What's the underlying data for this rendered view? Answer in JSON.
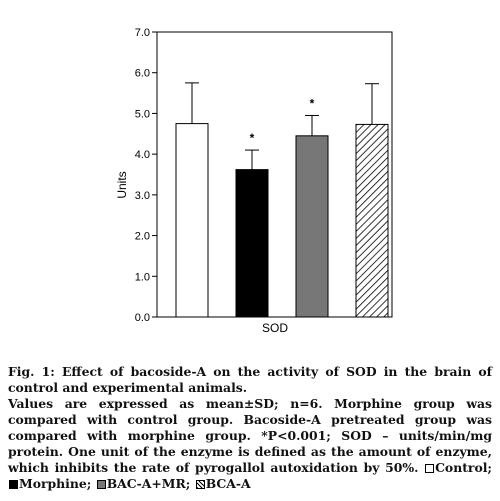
{
  "chart_data": {
    "type": "bar",
    "categories": [
      "Control",
      "Morphine",
      "BAC-A+MR",
      "BCA-A"
    ],
    "values": [
      4.75,
      3.62,
      4.45,
      4.73
    ],
    "errors": [
      1.0,
      0.48,
      0.5,
      1.0
    ],
    "significance": [
      "",
      "*",
      "*",
      ""
    ],
    "fills": [
      "#ffffff",
      "#000000",
      "#777777",
      "hatch"
    ],
    "xlabel": "SOD",
    "ylabel": "Units",
    "ylim": [
      0,
      7
    ],
    "yticks": [
      "0.0",
      "1.0",
      "2.0",
      "3.0",
      "4.0",
      "5.0",
      "6.0",
      "7.0"
    ],
    "grid": false
  },
  "caption": {
    "title": "Fig. 1: Effect of bacoside-A on the activity of SOD in the brain of control and experimental animals.",
    "note": "Values are expressed as mean±SD; n=6. Morphine group was compared with control group. Bacoside-A pretreated group was compared with morphine group. *P<0.001; SOD – units/min/mg protein. One unit of the enzyme is defined as the amount of enzyme, which inhibits the rate of pyrogallol autoxidation by 50%.",
    "legend": [
      "Control;",
      "Morphine;",
      "BAC-A+MR;",
      "BCA-A"
    ]
  }
}
